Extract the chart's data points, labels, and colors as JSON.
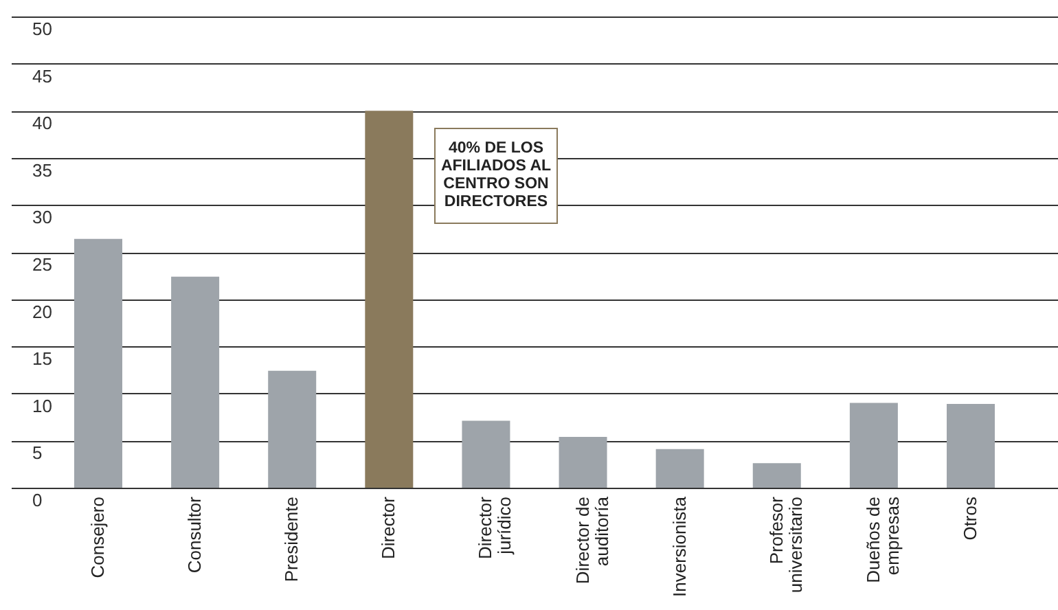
{
  "chart_data": {
    "type": "bar",
    "categories": [
      "Consejero",
      "Consultor",
      "Presidente",
      "Director",
      "Director\njurídico",
      "Director de\nauditoría",
      "Inversionista",
      "Profesor\nuniversitario",
      "Dueños de\nempresas",
      "Otros"
    ],
    "values": [
      26.4,
      22.4,
      12.4,
      40,
      7.1,
      5.4,
      4.1,
      2.6,
      9,
      8.9
    ],
    "colors": [
      "#9ea4aa",
      "#9ea4aa",
      "#9ea4aa",
      "#8a7a5c",
      "#9ea4aa",
      "#9ea4aa",
      "#9ea4aa",
      "#9ea4aa",
      "#9ea4aa",
      "#9ea4aa"
    ],
    "ylim": [
      0,
      50
    ],
    "yticks": [
      0,
      5,
      10,
      15,
      20,
      25,
      30,
      35,
      40,
      45,
      50
    ],
    "grid": true,
    "annotations": [
      "40% DE LOS AFILIADOS AL CENTRO SON DIRECTORES"
    ]
  }
}
